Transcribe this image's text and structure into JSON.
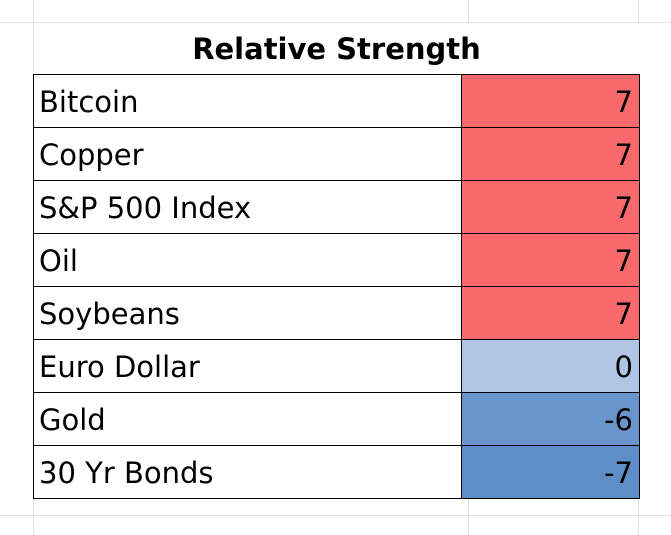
{
  "title": "Relative Strength",
  "rows": [
    {
      "name": "Bitcoin",
      "value": "7",
      "color": "#f8696b"
    },
    {
      "name": "Copper",
      "value": "7",
      "color": "#f8696b"
    },
    {
      "name": "S&P 500 Index",
      "value": "7",
      "color": "#f8696b"
    },
    {
      "name": "Oil",
      "value": "7",
      "color": "#f8696b"
    },
    {
      "name": "Soybeans",
      "value": "7",
      "color": "#f8696b"
    },
    {
      "name": "Euro Dollar",
      "value": "0",
      "color": "#b0c4e4"
    },
    {
      "name": "Gold",
      "value": "-6",
      "color": "#6994cc"
    },
    {
      "name": "30 Yr Bonds",
      "value": "-7",
      "color": "#5f8dc8"
    }
  ]
}
